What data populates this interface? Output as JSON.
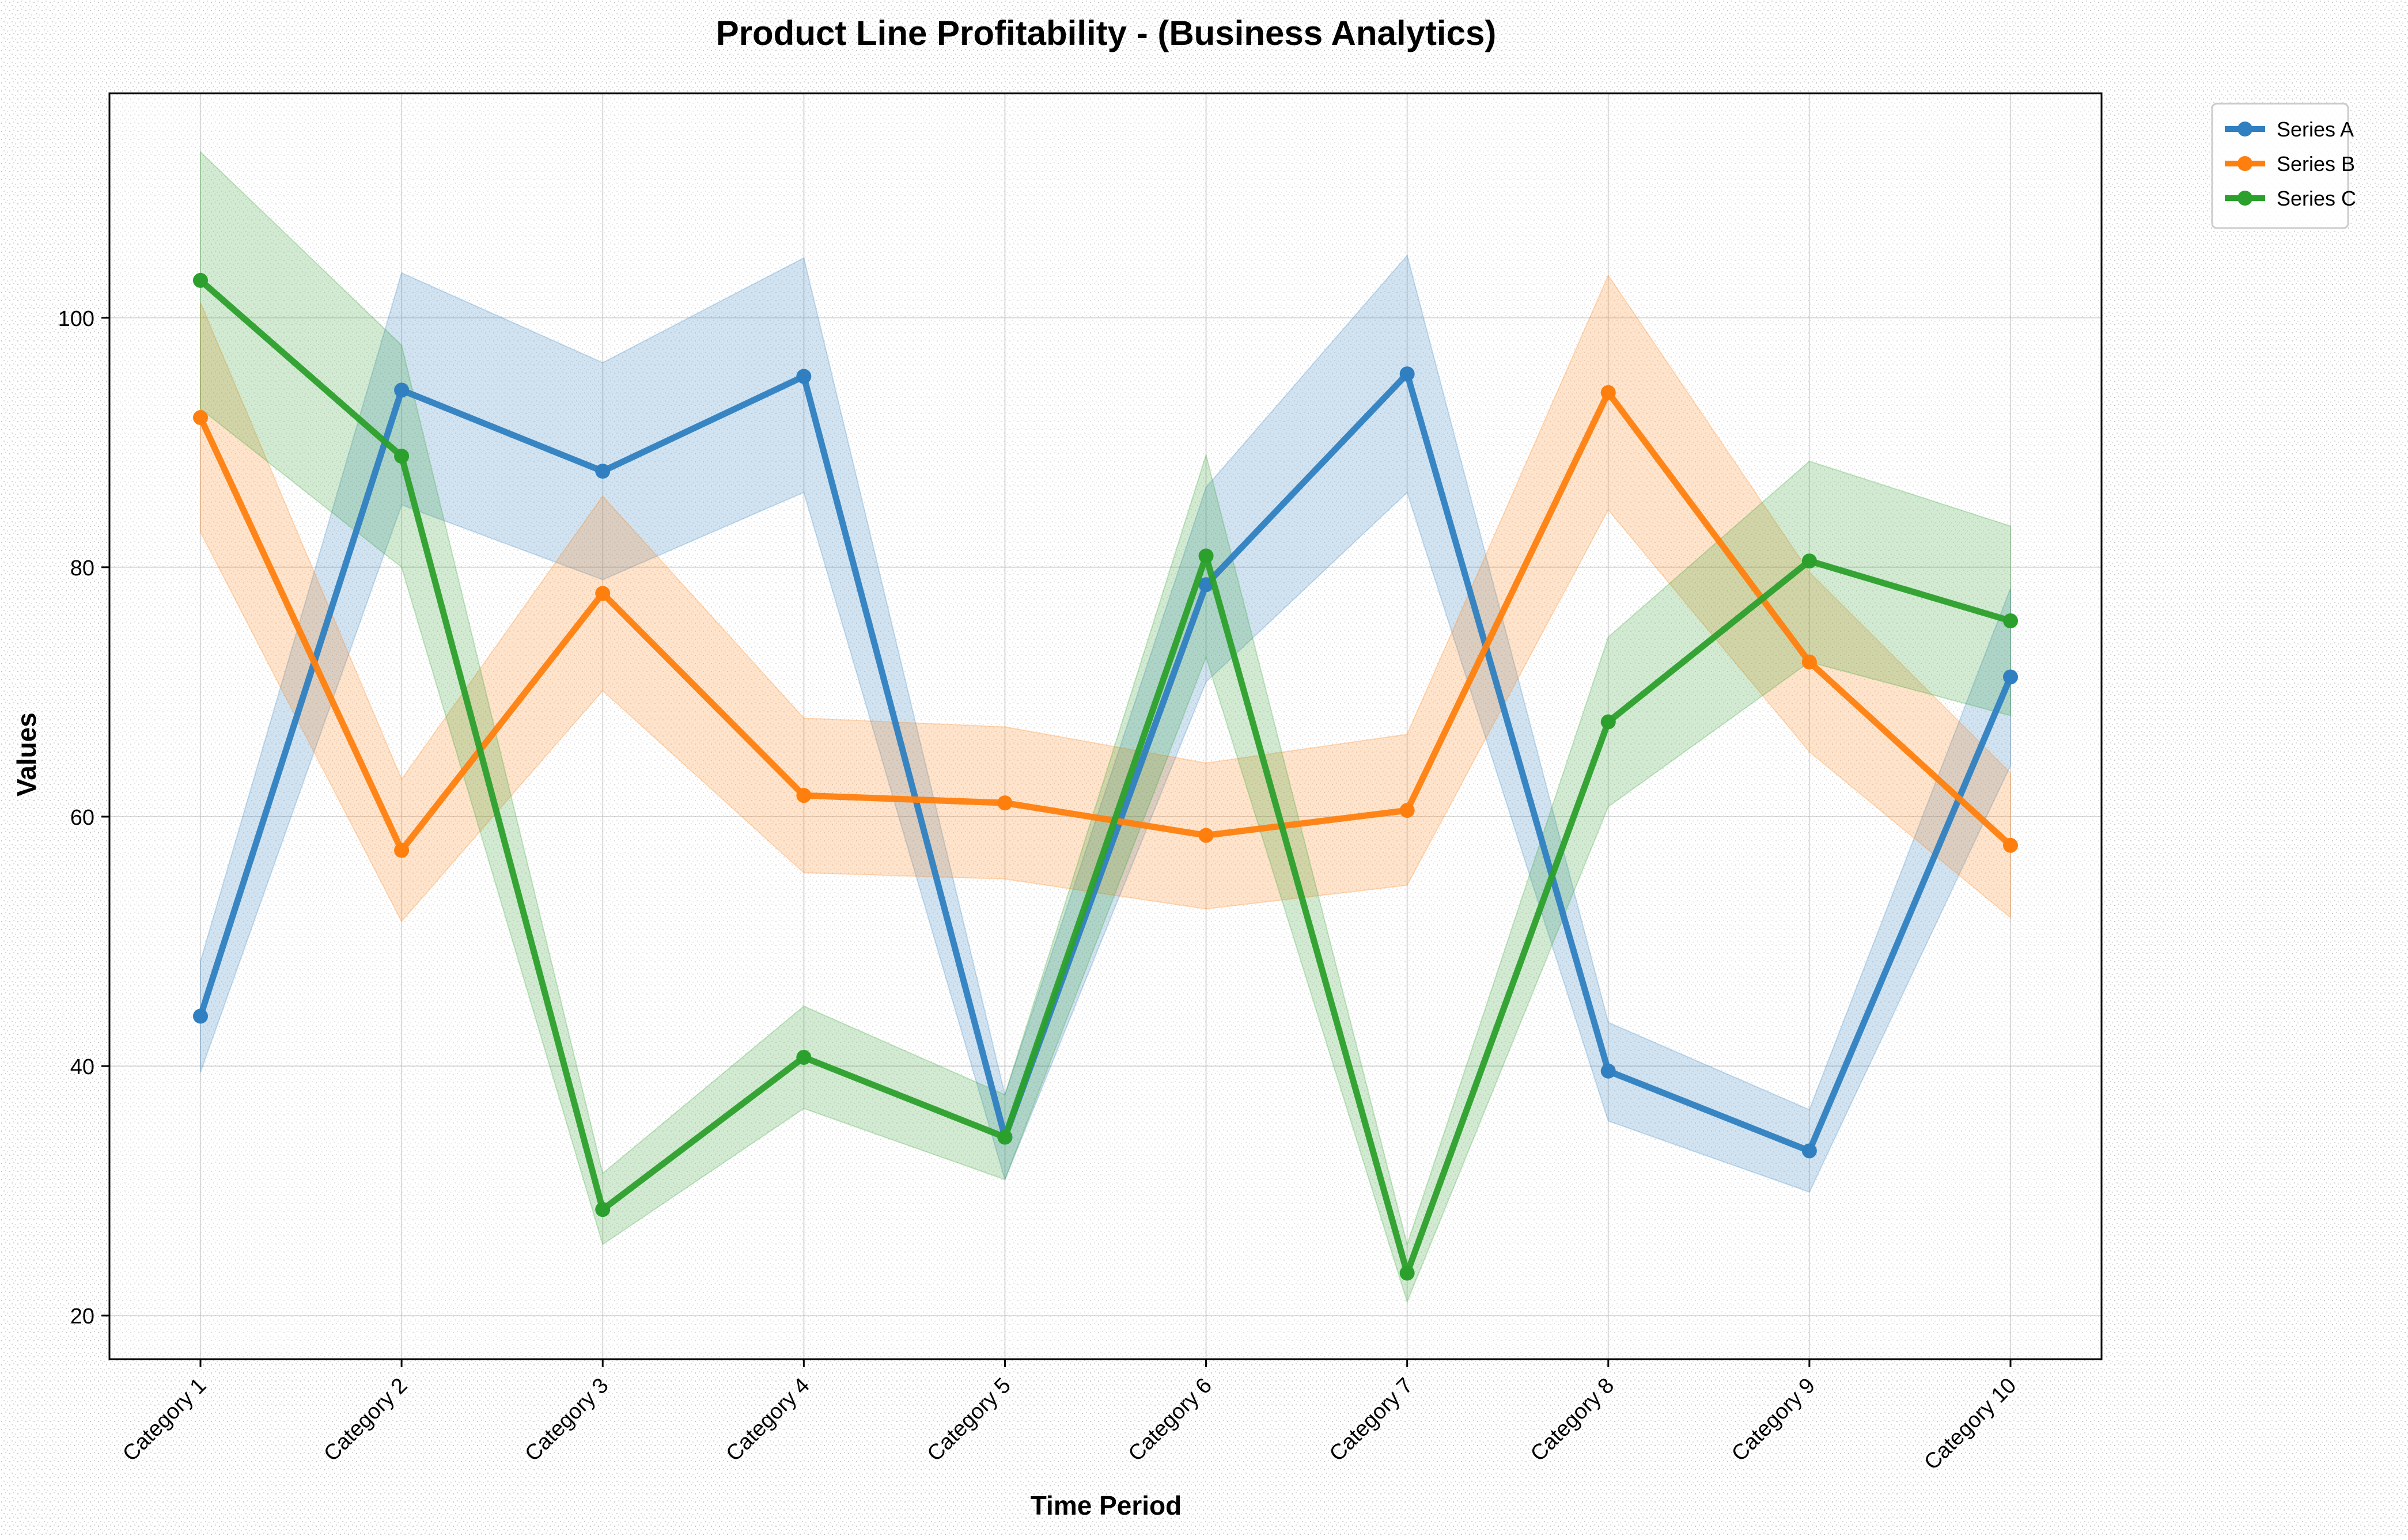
{
  "chart_data": {
    "type": "line",
    "title": "Product Line Profitability - (Business Analytics)",
    "xlabel": "Time Period",
    "ylabel": "Values",
    "categories": [
      "Category 1",
      "Category 2",
      "Category 3",
      "Category 4",
      "Category 5",
      "Category 6",
      "Category 7",
      "Category 8",
      "Category 9",
      "Category 10"
    ],
    "ylim": [
      16.5,
      118
    ],
    "yticks": [
      20,
      40,
      60,
      80,
      100
    ],
    "grid": true,
    "legend_position": "upper-right-outside",
    "series": [
      {
        "name": "Series A",
        "color": "#2f7fc1",
        "values": [
          44.0,
          94.2,
          87.7,
          95.3,
          34.3,
          78.6,
          95.5,
          39.6,
          33.2,
          71.2
        ],
        "lower": [
          39.5,
          85.0,
          79.0,
          86.0,
          30.9,
          70.8,
          86.0,
          35.6,
          29.9,
          64.1
        ],
        "upper": [
          48.4,
          103.6,
          96.4,
          104.8,
          37.7,
          86.4,
          105.0,
          43.5,
          36.5,
          78.3
        ]
      },
      {
        "name": "Series B",
        "color": "#ff7f0e",
        "values": [
          92.0,
          57.3,
          77.9,
          61.7,
          61.1,
          58.5,
          60.5,
          94.0,
          72.4,
          57.7
        ],
        "lower": [
          82.8,
          51.6,
          70.1,
          55.5,
          55.0,
          52.6,
          54.5,
          84.6,
          65.2,
          51.9
        ],
        "upper": [
          101.2,
          63.0,
          85.7,
          67.9,
          67.2,
          64.3,
          66.6,
          103.4,
          79.6,
          63.5
        ]
      },
      {
        "name": "Series C",
        "color": "#2ca02c",
        "values": [
          103.0,
          88.9,
          28.5,
          40.7,
          34.3,
          80.9,
          23.4,
          67.6,
          80.5,
          75.7
        ],
        "lower": [
          92.7,
          80.0,
          25.7,
          36.6,
          30.9,
          72.8,
          21.1,
          60.8,
          72.4,
          68.1
        ],
        "upper": [
          113.3,
          97.8,
          31.4,
          44.8,
          37.7,
          89.0,
          25.7,
          74.4,
          88.5,
          83.3
        ]
      }
    ]
  }
}
